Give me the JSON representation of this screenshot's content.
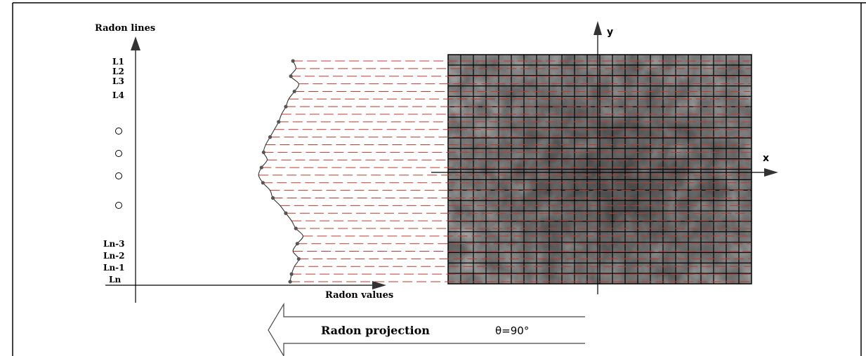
{
  "axes": {
    "radon_lines_label": "Radon lines",
    "radon_values_label": "Radon values",
    "x_label": "x",
    "y_label": "y"
  },
  "radon_line_labels": {
    "top": [
      "L1",
      "L2",
      "L3",
      "L4"
    ],
    "bottom": [
      "Ln-3",
      "Ln-2",
      "Ln-1",
      "Ln"
    ]
  },
  "projection": {
    "label": "Radon projection",
    "angle": "θ=90°"
  },
  "colors": {
    "projection_line": "#c0392b",
    "grid_line": "#000000",
    "image_dark": "#2b2b2b",
    "image_light": "#8a8a8a",
    "frame": "#000000"
  },
  "profile": {
    "values": [
      0.58,
      0.62,
      0.55,
      0.66,
      0.6,
      0.52,
      0.48,
      0.42,
      0.38,
      0.32,
      0.26,
      0.2,
      0.17,
      0.22,
      0.14,
      0.1,
      0.16,
      0.26,
      0.3,
      0.4,
      0.48,
      0.56,
      0.62,
      0.72,
      0.64,
      0.58,
      0.66,
      0.6,
      0.56,
      0.54
    ]
  }
}
